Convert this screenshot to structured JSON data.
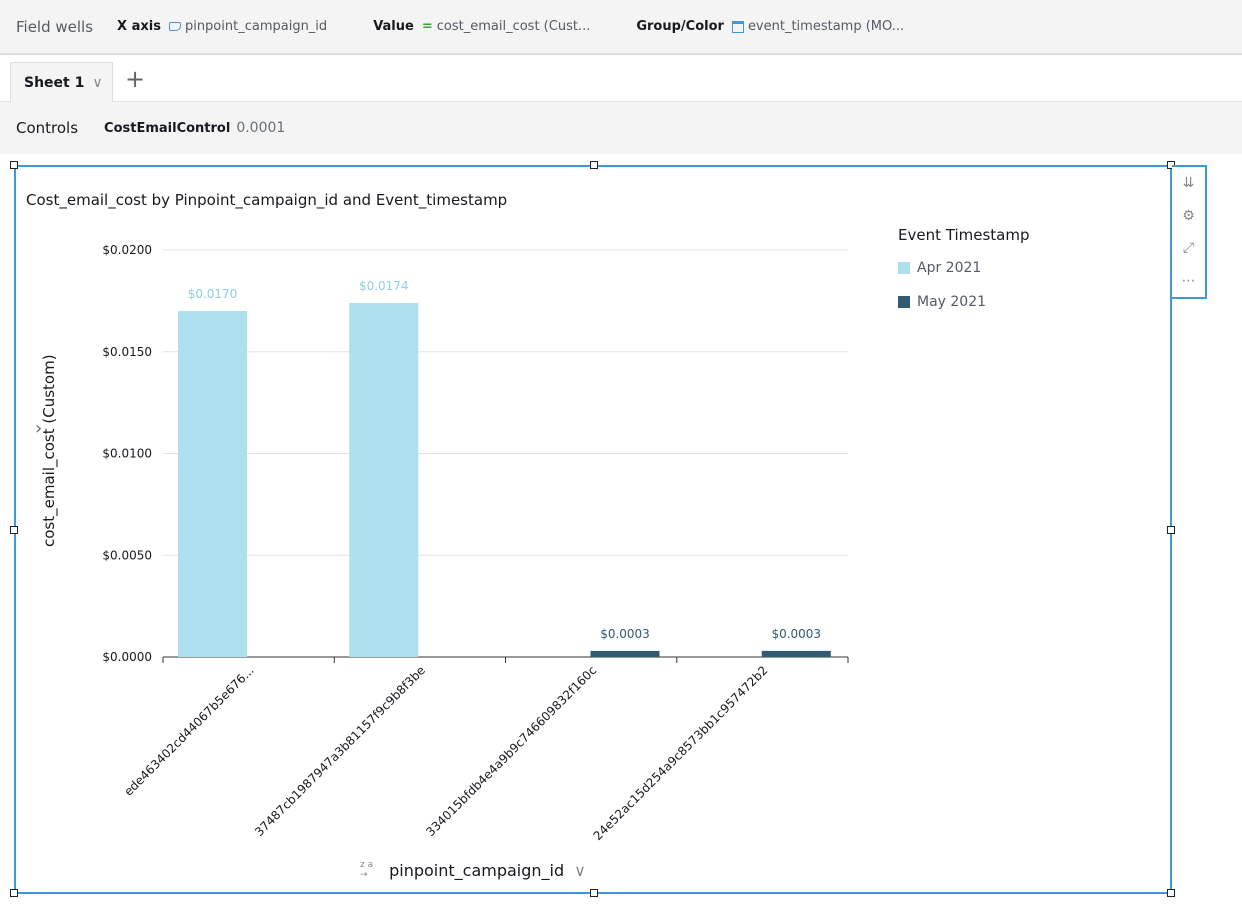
{
  "field_wells": {
    "label": "Field wells",
    "x_axis": {
      "label": "X axis",
      "value": "pinpoint_campaign_id"
    },
    "value": {
      "label": "Value",
      "value": "cost_email_cost (Cust..."
    },
    "group": {
      "label": "Group/Color",
      "value": "event_timestamp (MO..."
    }
  },
  "sheet": {
    "tab": "Sheet 1",
    "add": "+"
  },
  "controls": {
    "label": "Controls",
    "name": "CostEmailControl",
    "value": "0.0001"
  },
  "colors": {
    "apr": "#addfee",
    "may": "#325a73",
    "accent": "#3d9ad8"
  },
  "chart_data": {
    "type": "bar",
    "title": "Cost_email_cost by Pinpoint_campaign_id and Event_timestamp",
    "xlabel": "pinpoint_campaign_id",
    "ylabel": "cost_email_cost (Custom)",
    "ylim": [
      0,
      0.02
    ],
    "yticks": [
      "$0.0000",
      "$0.0050",
      "$0.0100",
      "$0.0150",
      "$0.0200"
    ],
    "ytick_values": [
      0,
      0.005,
      0.01,
      0.015,
      0.02
    ],
    "categories": [
      "ede463402cd44067b5e676...",
      "37487cb1987947a3b81157f9c9b8f3be",
      "334015bfdb4e4a9b9c746609832f160c",
      "24e52ac15d254a9c8573bb1c957472b2"
    ],
    "legend_title": "Event Timestamp",
    "legend_position": "right",
    "series": [
      {
        "name": "Apr 2021",
        "values": [
          0.017,
          0.0174,
          null,
          null
        ],
        "labels": [
          "$0.0170",
          "$0.0174",
          null,
          null
        ]
      },
      {
        "name": "May 2021",
        "values": [
          null,
          null,
          0.0003,
          0.0003
        ],
        "labels": [
          null,
          null,
          "$0.0003",
          "$0.0003"
        ]
      }
    ]
  }
}
